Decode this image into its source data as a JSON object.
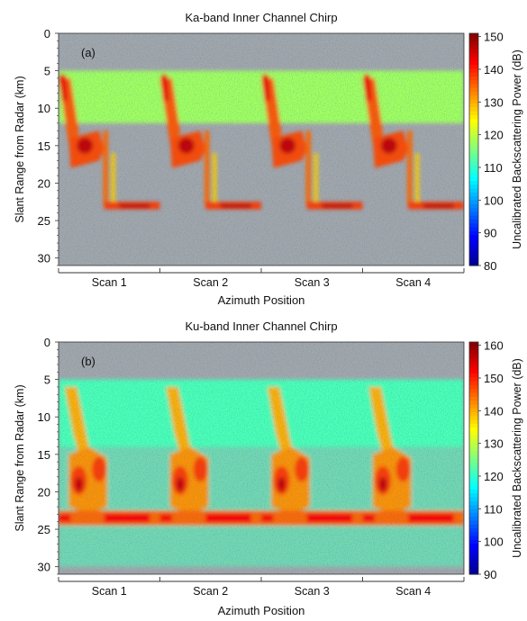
{
  "chart_data": [
    {
      "type": "heatmap",
      "panel_label": "(a)",
      "title": "Ka-band Inner Channel Chirp",
      "xlabel": "Azimuth Position",
      "ylabel": "Slant Range from Radar (km)",
      "x_categories": [
        "Scan 1",
        "Scan 2",
        "Scan 3",
        "Scan 4"
      ],
      "ylim": [
        0,
        31
      ],
      "yticks": [
        0,
        5,
        10,
        15,
        20,
        25,
        30
      ],
      "y_inverted": true,
      "colorbar": {
        "label": "Uncalibrated Backscattering Power (dB)",
        "range": [
          80,
          151
        ],
        "ticks": [
          80,
          90,
          100,
          110,
          120,
          130,
          140,
          150
        ]
      },
      "no_data_color": "#a6a6a6",
      "no_data_below_km": 5,
      "colormap": [
        "#00008f",
        "#0000ff",
        "#0080ff",
        "#00ffff",
        "#80ff80",
        "#ffff00",
        "#ff8000",
        "#ff0000",
        "#800000"
      ],
      "features_per_scan": [
        {
          "name": "near-range clutter band",
          "range_km": [
            5,
            12
          ],
          "level_db": 118
        },
        {
          "name": "upper core",
          "range_km": [
            5,
            12
          ],
          "level_db": 136
        },
        {
          "name": "mid core",
          "range_km": [
            13,
            18
          ],
          "level_db": 137
        },
        {
          "name": "far-range return",
          "range_km": [
            22.5,
            23.5
          ],
          "level_db": 138
        }
      ]
    },
    {
      "type": "heatmap",
      "panel_label": "(b)",
      "title": "Ku-band Inner Channel Chirp",
      "xlabel": "Azimuth Position",
      "ylabel": "Slant Range from Radar (km)",
      "x_categories": [
        "Scan 1",
        "Scan 2",
        "Scan 3",
        "Scan 4"
      ],
      "ylim": [
        0,
        31
      ],
      "yticks": [
        0,
        5,
        10,
        15,
        20,
        25,
        30
      ],
      "y_inverted": true,
      "colorbar": {
        "label": "Uncalibrated Backscattering Power (dB)",
        "range": [
          90,
          161
        ],
        "ticks": [
          90,
          100,
          110,
          120,
          130,
          140,
          150,
          160
        ]
      },
      "no_data_color": "#a6a6a6",
      "no_data_below_km": 5,
      "colormap": [
        "#00008f",
        "#0000ff",
        "#0080ff",
        "#00ffff",
        "#80ff80",
        "#ffff00",
        "#ff8000",
        "#ff0000",
        "#800000"
      ],
      "features_per_scan": [
        {
          "name": "clutter background",
          "range_km": [
            5,
            30
          ],
          "level_db": 122
        },
        {
          "name": "upper core",
          "range_km": [
            6,
            13
          ],
          "level_db": 140
        },
        {
          "name": "mid core",
          "range_km": [
            14,
            22
          ],
          "level_db": 148
        },
        {
          "name": "far-range return",
          "range_km": [
            22.5,
            24.5
          ],
          "level_db": 152
        }
      ]
    }
  ]
}
